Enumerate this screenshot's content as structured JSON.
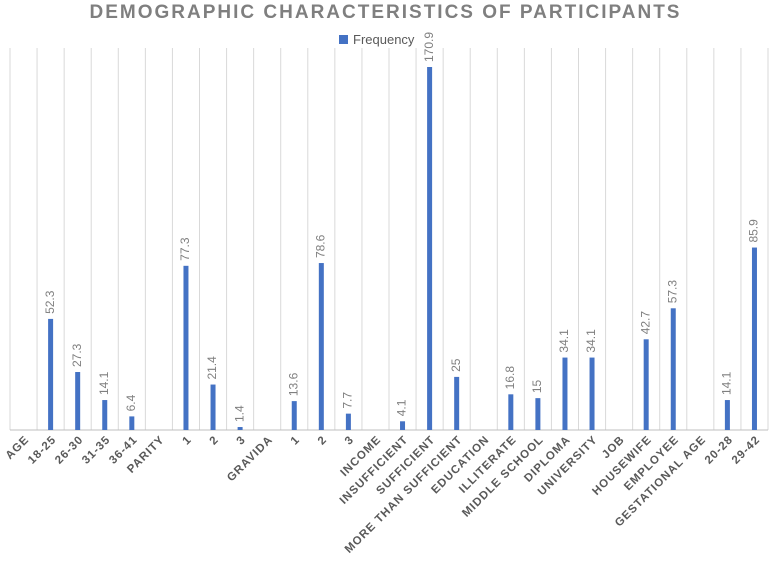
{
  "chart_data": {
    "type": "bar",
    "title": "DEMOGRAPHIC CHARACTERISTICS OF PARTICIPANTS",
    "legend_position": "top",
    "grid": "vertical",
    "series": [
      {
        "name": "Frequency",
        "color": "#4472c4",
        "values": [
          null,
          52.3,
          27.3,
          14.1,
          6.4,
          null,
          77.3,
          21.4,
          1.4,
          null,
          13.6,
          78.6,
          7.7,
          null,
          4.1,
          170.9,
          25,
          null,
          16.8,
          15,
          34.1,
          34.1,
          null,
          42.7,
          57.3,
          null,
          14.1,
          85.9
        ]
      }
    ],
    "categories": [
      "AGE",
      "18-25",
      "26-30",
      "31-35",
      "36-41",
      "PARITY",
      "1",
      "2",
      "3",
      "GRAVIDA",
      "1",
      "2",
      "3",
      "INCOME",
      "INSUFFICIENT",
      "SUFFICIENT",
      "MORE THAN SUFFICIENT",
      "EDUCATION",
      "ILLITERATE",
      "MIDDLE SCHOOL",
      "DIPLOMA",
      "UNIVERSITY",
      "JOB",
      "HOUSEWIFE",
      "EMPLOYEE",
      "GESTATIONAL AGE",
      "20-28",
      "29-42"
    ],
    "ylim": [
      0,
      180
    ]
  }
}
